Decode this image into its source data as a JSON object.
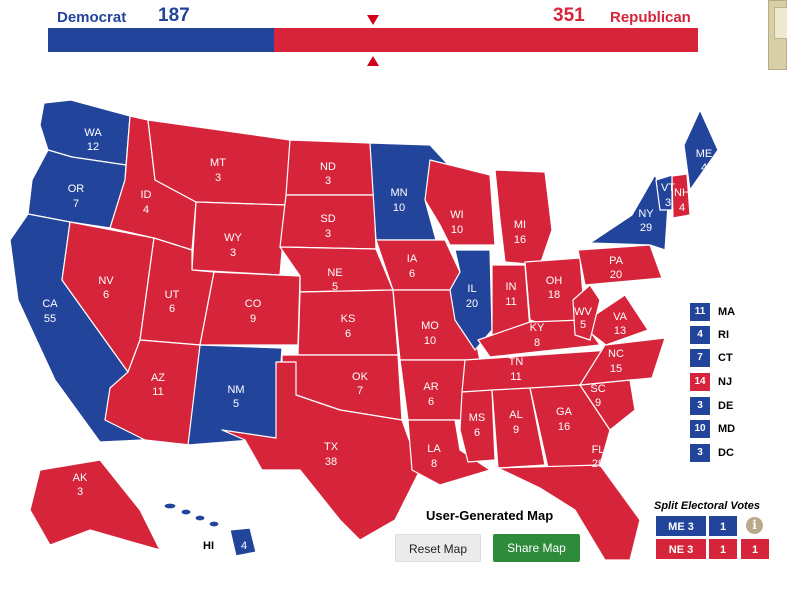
{
  "header": {
    "democrat_label": "Democrat",
    "democrat_total": "187",
    "republican_total": "351",
    "republican_label": "Republican",
    "democrat_votes": 187,
    "republican_votes": 351,
    "total_votes": 538
  },
  "colors": {
    "democrat": "#23449b",
    "republican": "#d6253a",
    "marker": "#d0021b"
  },
  "states": [
    {
      "abbr": "WA",
      "votes": "12",
      "party": "D"
    },
    {
      "abbr": "OR",
      "votes": "7",
      "party": "D"
    },
    {
      "abbr": "CA",
      "votes": "55",
      "party": "D"
    },
    {
      "abbr": "NV",
      "votes": "6",
      "party": "R"
    },
    {
      "abbr": "ID",
      "votes": "4",
      "party": "R"
    },
    {
      "abbr": "MT",
      "votes": "3",
      "party": "R"
    },
    {
      "abbr": "WY",
      "votes": "3",
      "party": "R"
    },
    {
      "abbr": "UT",
      "votes": "6",
      "party": "R"
    },
    {
      "abbr": "AZ",
      "votes": "11",
      "party": "R"
    },
    {
      "abbr": "CO",
      "votes": "9",
      "party": "R"
    },
    {
      "abbr": "NM",
      "votes": "5",
      "party": "D"
    },
    {
      "abbr": "ND",
      "votes": "3",
      "party": "R"
    },
    {
      "abbr": "SD",
      "votes": "3",
      "party": "R"
    },
    {
      "abbr": "NE",
      "votes": "5",
      "party": "R"
    },
    {
      "abbr": "KS",
      "votes": "6",
      "party": "R"
    },
    {
      "abbr": "OK",
      "votes": "7",
      "party": "R"
    },
    {
      "abbr": "TX",
      "votes": "38",
      "party": "R"
    },
    {
      "abbr": "MN",
      "votes": "10",
      "party": "D"
    },
    {
      "abbr": "IA",
      "votes": "6",
      "party": "R"
    },
    {
      "abbr": "MO",
      "votes": "10",
      "party": "R"
    },
    {
      "abbr": "AR",
      "votes": "6",
      "party": "R"
    },
    {
      "abbr": "LA",
      "votes": "8",
      "party": "R"
    },
    {
      "abbr": "WI",
      "votes": "10",
      "party": "R"
    },
    {
      "abbr": "IL",
      "votes": "20",
      "party": "D"
    },
    {
      "abbr": "MI",
      "votes": "16",
      "party": "R"
    },
    {
      "abbr": "IN",
      "votes": "11",
      "party": "R"
    },
    {
      "abbr": "OH",
      "votes": "18",
      "party": "R"
    },
    {
      "abbr": "KY",
      "votes": "8",
      "party": "R"
    },
    {
      "abbr": "TN",
      "votes": "11",
      "party": "R"
    },
    {
      "abbr": "MS",
      "votes": "6",
      "party": "R"
    },
    {
      "abbr": "AL",
      "votes": "9",
      "party": "R"
    },
    {
      "abbr": "GA",
      "votes": "16",
      "party": "R"
    },
    {
      "abbr": "FL",
      "votes": "29",
      "party": "R"
    },
    {
      "abbr": "SC",
      "votes": "9",
      "party": "R"
    },
    {
      "abbr": "NC",
      "votes": "15",
      "party": "R"
    },
    {
      "abbr": "VA",
      "votes": "13",
      "party": "R"
    },
    {
      "abbr": "WV",
      "votes": "5",
      "party": "R"
    },
    {
      "abbr": "PA",
      "votes": "20",
      "party": "R"
    },
    {
      "abbr": "NY",
      "votes": "29",
      "party": "D"
    },
    {
      "abbr": "VT",
      "votes": "3",
      "party": "D"
    },
    {
      "abbr": "NH",
      "votes": "4",
      "party": "R"
    },
    {
      "abbr": "ME",
      "votes": "4",
      "party": "D"
    },
    {
      "abbr": "AK",
      "votes": "3",
      "party": "R"
    },
    {
      "abbr": "HI",
      "votes": "4",
      "party": "D"
    }
  ],
  "small_states": [
    {
      "abbr": "MA",
      "votes": "11",
      "party": "D"
    },
    {
      "abbr": "RI",
      "votes": "4",
      "party": "D"
    },
    {
      "abbr": "CT",
      "votes": "7",
      "party": "D"
    },
    {
      "abbr": "NJ",
      "votes": "14",
      "party": "R"
    },
    {
      "abbr": "DE",
      "votes": "3",
      "party": "D"
    },
    {
      "abbr": "MD",
      "votes": "10",
      "party": "D"
    },
    {
      "abbr": "DC",
      "votes": "3",
      "party": "D"
    }
  ],
  "split": {
    "title": "Split Electoral Votes",
    "me": {
      "label": "ME 3",
      "cells": [
        "1"
      ]
    },
    "ne": {
      "label": "NE 3",
      "cells": [
        "1",
        "1"
      ]
    }
  },
  "footer": {
    "title": "User-Generated Map",
    "reset_label": "Reset Map",
    "share_label": "Share Map"
  }
}
